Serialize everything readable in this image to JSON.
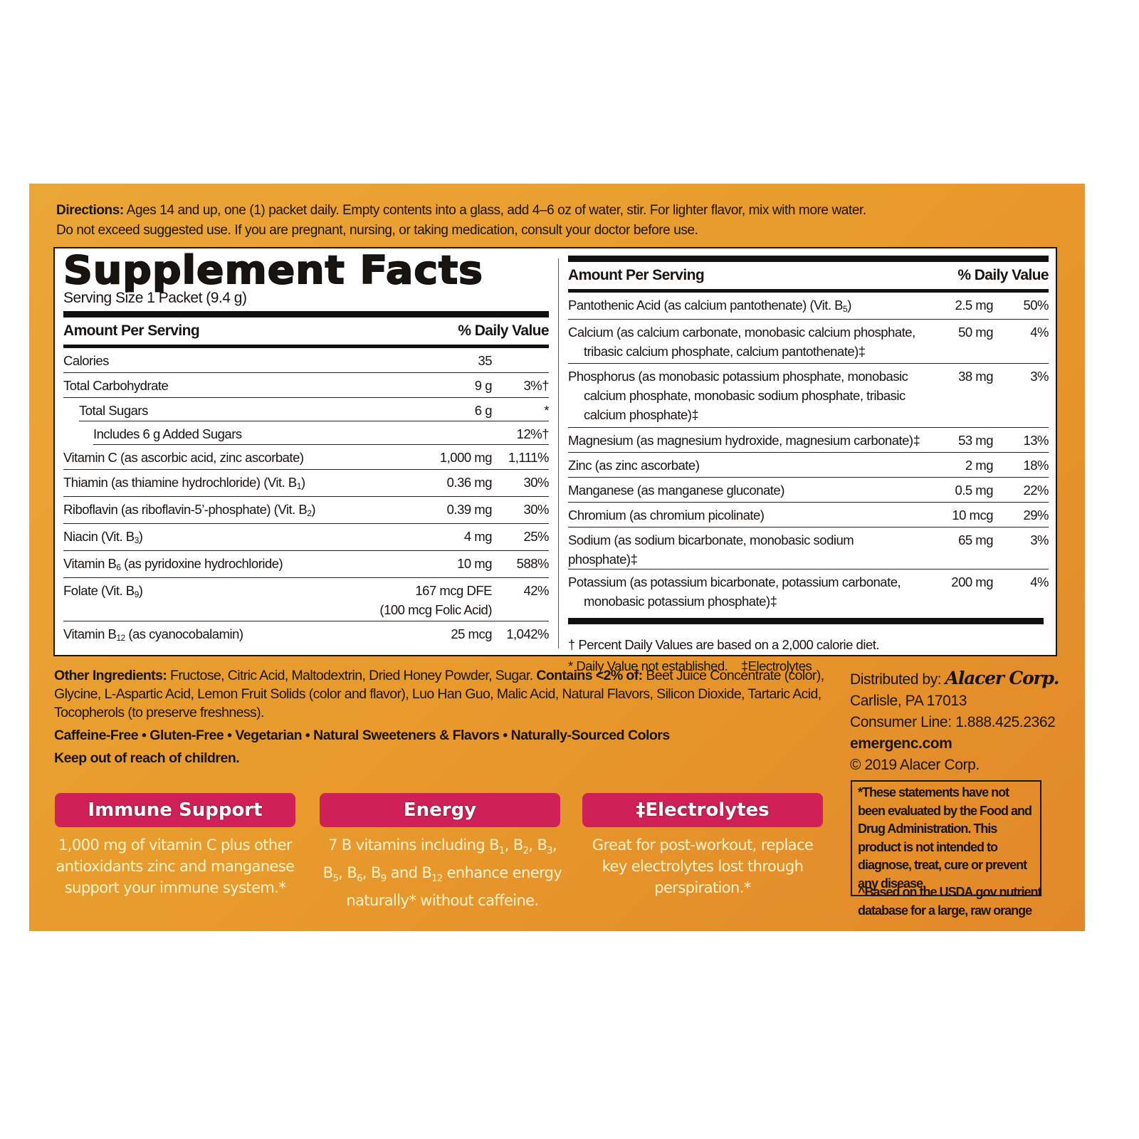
{
  "colors": {
    "background": "#e89a2c",
    "accent_pink": "#cf2158",
    "cream_text": "#fff4cf"
  },
  "directions": {
    "label": "Directions:",
    "line1": " Ages 14 and up, one (1) packet daily. Empty contents into a glass, add 4–6 oz of water, stir. For lighter flavor, mix with more water.",
    "line2": "Do not exceed suggested use. If you are pregnant, nursing, or taking medication, consult your doctor before use."
  },
  "facts": {
    "title": "Supplement Facts",
    "serving": "Serving Size 1 Packet (9.4 g)",
    "header_amount": "Amount Per Serving",
    "header_dv": "% Daily Value",
    "left_rows": [
      {
        "name": [
          {
            "t": "Calories"
          }
        ],
        "amount": "35",
        "dv": ""
      },
      {
        "name": [
          {
            "t": "Total Carbohydrate"
          }
        ],
        "amount": "9 g",
        "dv": "3%†"
      },
      {
        "name": [
          {
            "t": "Total Sugars"
          }
        ],
        "amount": "6 g",
        "dv": "*",
        "indent": 1
      },
      {
        "name": [
          {
            "t": "Includes 6 g Added Sugars"
          }
        ],
        "amount": "",
        "dv": "12%†",
        "indent": 2
      },
      {
        "name": [
          {
            "t": "Vitamin C (as ascorbic acid, zinc ascorbate)"
          }
        ],
        "amount": "1,000 mg",
        "dv": "1,111%"
      },
      {
        "name": [
          {
            "t": "Thiamin (as thiamine hydrochloride) (Vit. B"
          },
          {
            "s": "1"
          },
          {
            "t": ")"
          }
        ],
        "amount": "0.36 mg",
        "dv": "30%"
      },
      {
        "name": [
          {
            "t": "Riboflavin (as riboflavin-5’-phosphate) (Vit. B"
          },
          {
            "s": "2"
          },
          {
            "t": ")"
          }
        ],
        "amount": "0.39 mg",
        "dv": "30%"
      },
      {
        "name": [
          {
            "t": "Niacin (Vit. B"
          },
          {
            "s": "3"
          },
          {
            "t": ")"
          }
        ],
        "amount": "4 mg",
        "dv": "25%"
      },
      {
        "name": [
          {
            "t": "Vitamin B"
          },
          {
            "s": "6"
          },
          {
            "t": " (as pyridoxine hydrochloride)"
          }
        ],
        "amount": "10 mg",
        "dv": "588%"
      },
      {
        "name": [
          {
            "t": "Folate (Vit. B"
          },
          {
            "s": "9"
          },
          {
            "t": ")"
          }
        ],
        "amount": "167 mcg DFE",
        "amount2": "(100 mcg Folic Acid)",
        "dv": "42%"
      },
      {
        "name": [
          {
            "t": "Vitamin B"
          },
          {
            "s": "12"
          },
          {
            "t": " (as cyanocobalamin)"
          }
        ],
        "amount": "25 mcg",
        "dv": "1,042%"
      }
    ],
    "right_rows": [
      {
        "name": [
          {
            "t": "Pantothenic Acid (as calcium pantothenate) (Vit. B"
          },
          {
            "s": "5"
          },
          {
            "t": ")"
          }
        ],
        "amount": "2.5 mg",
        "dv": "50%"
      },
      {
        "name": [
          {
            "t": "Calcium (as calcium carbonate, monobasic calcium phosphate,"
          }
        ],
        "cont": [
          "tribasic calcium phosphate, calcium pantothenate)‡"
        ],
        "amount": "50 mg",
        "dv": "4%"
      },
      {
        "name": [
          {
            "t": "Phosphorus (as monobasic potassium phosphate, monobasic"
          }
        ],
        "cont": [
          "calcium phosphate, monobasic sodium phosphate, tribasic",
          "calcium phosphate)‡"
        ],
        "amount": "38 mg",
        "dv": "3%"
      },
      {
        "name": [
          {
            "t": "Magnesium (as magnesium hydroxide, magnesium carbonate)‡"
          }
        ],
        "amount": "53 mg",
        "dv": "13%"
      },
      {
        "name": [
          {
            "t": "Zinc (as zinc ascorbate)"
          }
        ],
        "amount": "2 mg",
        "dv": "18%"
      },
      {
        "name": [
          {
            "t": "Manganese (as manganese gluconate)"
          }
        ],
        "amount": "0.5 mg",
        "dv": "22%"
      },
      {
        "name": [
          {
            "t": "Chromium (as chromium picolinate)"
          }
        ],
        "amount": "10 mcg",
        "dv": "29%"
      },
      {
        "name": [
          {
            "t": "Sodium (as sodium bicarbonate, monobasic sodium phosphate)‡"
          }
        ],
        "amount": "65 mg",
        "dv": "3%"
      },
      {
        "name": [
          {
            "t": "Potassium (as potassium bicarbonate, potassium carbonate,"
          }
        ],
        "cont": [
          "monobasic potassium phosphate)‡"
        ],
        "amount": "200 mg",
        "dv": "4%"
      }
    ],
    "footnote1": "† Percent Daily Values are based on a 2,000 calorie diet.",
    "footnote2": "* Daily Value not established.    ‡Electrolytes"
  },
  "other_ingredients": {
    "label": "Other Ingredients:",
    "text": " Fructose, Citric Acid, Maltodextrin, Dried Honey Powder, Sugar. ",
    "contains_label": "Contains <2% of:",
    "contains_text": " Beet Juice Concentrate (color), Glycine, L-Aspartic Acid, Lemon Fruit Solids (color and flavor), Luo Han Guo, Malic Acid, Natural Flavors, Silicon Dioxide, Tartaric Acid, Tocopherols (to preserve freshness)."
  },
  "claims": "Caffeine-Free • Gluten-Free • Vegetarian • Natural Sweeteners & Flavors • Naturally-Sourced Colors",
  "keep_out": "Keep out of reach of children.",
  "benefits": [
    {
      "title": "Immune Support",
      "text": [
        {
          "t": "1,000 mg of vitamin C plus other antioxidants zinc and manganese support your immune system.*"
        }
      ]
    },
    {
      "title": "Energy",
      "text": [
        {
          "t": "7 B vitamins including B"
        },
        {
          "s": "1"
        },
        {
          "t": ", B"
        },
        {
          "s": "2"
        },
        {
          "t": ", B"
        },
        {
          "s": "3"
        },
        {
          "t": ", B"
        },
        {
          "s": "5"
        },
        {
          "t": ", B"
        },
        {
          "s": "6"
        },
        {
          "t": ", B"
        },
        {
          "s": "9"
        },
        {
          "t": " and B"
        },
        {
          "s": "12"
        },
        {
          "t": " enhance energy naturally* without caffeine."
        }
      ]
    },
    {
      "title": "‡Electrolytes",
      "text": [
        {
          "t": "Great for post-workout, replace key electrolytes lost through perspiration.*"
        }
      ]
    }
  ],
  "distributor": {
    "label": "Distributed by: ",
    "logo": "Alacer Corp.",
    "address": "Carlisle, PA 17013",
    "phone": "Consumer Line: 1.888.425.2362",
    "website": "emergenc.com",
    "copyright": "© 2019 Alacer Corp."
  },
  "fda_disclaimer": "*These statements have not been evaluated by the Food and Drug Administration. This product is not intended to diagnose, treat, cure or prevent any disease.",
  "usda_note": "^Based on the USDA.gov nutrient database for a large, raw orange"
}
